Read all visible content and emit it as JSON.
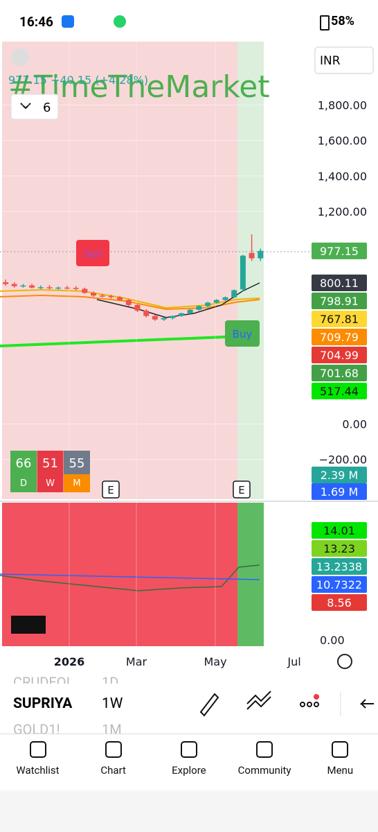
{
  "status_bar": {
    "time": "16:46",
    "battery": "58%"
  },
  "chart_data": {
    "type": "candlestick",
    "quote": "977.15  +40.15 (+4.28%)",
    "watermark": "#TimeTheMarket",
    "interval": "6",
    "currency": "INR",
    "ylim": [
      -424,
      2158
    ],
    "yticks": [
      {
        "value": 1800,
        "label": "1,800.00"
      },
      {
        "value": 1600,
        "label": "1,600.00"
      },
      {
        "value": 1400,
        "label": "1,400.00"
      },
      {
        "value": 1200,
        "label": "1,200.00"
      },
      {
        "value": 0,
        "label": "0.00"
      },
      {
        "value": -200,
        "label": "−200.00"
      }
    ],
    "x_labels": [
      "2026",
      "Mar",
      "May",
      "Jul"
    ],
    "open": [
      800,
      790,
      778,
      782,
      770,
      772,
      766,
      770,
      768,
      763,
      740,
      725,
      722,
      716,
      700,
      672,
      640,
      610,
      590,
      598,
      610,
      625,
      645,
      665,
      685,
      700,
      715,
      760,
      965,
      935
    ],
    "high": [
      815,
      800,
      790,
      792,
      782,
      784,
      776,
      780,
      778,
      770,
      748,
      735,
      730,
      722,
      705,
      678,
      648,
      616,
      602,
      612,
      628,
      650,
      670,
      690,
      705,
      720,
      760,
      955,
      1070,
      990
    ],
    "low": [
      780,
      770,
      770,
      765,
      762,
      760,
      758,
      760,
      755,
      735,
      718,
      715,
      708,
      695,
      665,
      632,
      602,
      582,
      582,
      590,
      605,
      620,
      640,
      660,
      680,
      695,
      710,
      750,
      920,
      920
    ],
    "close": [
      790,
      778,
      782,
      770,
      772,
      766,
      770,
      768,
      763,
      740,
      725,
      722,
      716,
      700,
      672,
      640,
      610,
      590,
      598,
      610,
      625,
      645,
      665,
      685,
      700,
      715,
      755,
      950,
      935,
      977.15
    ],
    "up_color": "#26a69a",
    "down_color": "#ef5350",
    "price_labels": [
      {
        "value": 977.15,
        "color": "#4caf50"
      },
      {
        "value": 800.11,
        "color": "#363a45"
      },
      {
        "value": 798.91,
        "color": "#43a047"
      },
      {
        "value": 767.81,
        "color": "#fdd835"
      },
      {
        "value": 709.79,
        "color": "#fb8c00"
      },
      {
        "value": 704.99,
        "color": "#e53935"
      },
      {
        "value": 701.68,
        "color": "#43a047"
      },
      {
        "value": 517.44,
        "color": "#00e600"
      }
    ],
    "sell": "Sell",
    "buy": "Buy",
    "scores": [
      {
        "value": 66,
        "label": "D",
        "color": "#4caf50"
      },
      {
        "value": 51,
        "label": "W",
        "color": "#e53945"
      },
      {
        "value": 55,
        "label": "M",
        "color": "#707a8a"
      }
    ],
    "event": "E",
    "volume_labels": [
      {
        "label": "2.39 M",
        "color": "#26a69a"
      },
      {
        "label": "1.69 M",
        "color": "#2962ff"
      }
    ],
    "indicator_labels": [
      {
        "value": 14.01,
        "color": "#00e600"
      },
      {
        "value": 13.23,
        "color": "#7ed321"
      },
      {
        "value": 13.2338,
        "color": "#26a69a"
      },
      {
        "value": 10.7322,
        "color": "#2962ff"
      },
      {
        "value": 8.56,
        "color": "#e53935"
      }
    ],
    "indicator_zero": "0.00"
  },
  "symbols": [
    {
      "name": "CRUDEOI",
      "interval": "1D"
    },
    {
      "name": "SUPRIYA",
      "interval": "1W"
    },
    {
      "name": "GOLD1!",
      "interval": "1M"
    }
  ],
  "nav": [
    "Watchlist",
    "Chart",
    "Explore",
    "Community",
    "Menu"
  ]
}
